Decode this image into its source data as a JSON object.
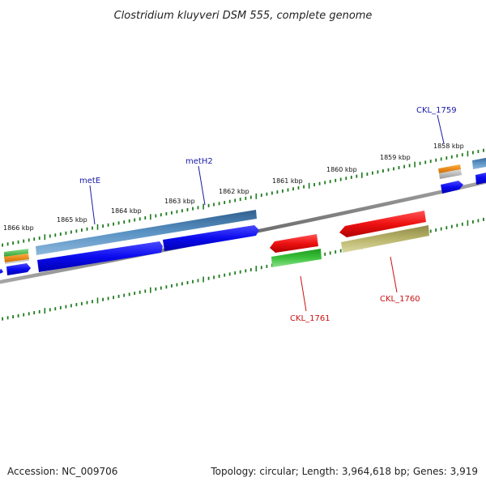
{
  "title": "Clostridium kluyveri DSM 555, complete genome",
  "footer": {
    "accession": "Accession: NC_009706",
    "summary": "Topology: circular; Length: 3,964,618 bp; Genes: 3,919"
  },
  "scale_labels": [
    "1858 kbp",
    "1859 kbp",
    "1860 kbp",
    "1861 kbp",
    "1862 kbp",
    "1863 kbp",
    "1864 kbp",
    "1865 kbp",
    "1866 kbp"
  ],
  "gene_labels": [
    {
      "name": "metE",
      "color": "#1a1aa8"
    },
    {
      "name": "metH2",
      "color": "#1a1aa8"
    },
    {
      "name": "CKL_1759",
      "color": "#1a1aa8"
    },
    {
      "name": "CKL_1761",
      "color": "#cc1111"
    },
    {
      "name": "CKL_1760",
      "color": "#cc1111"
    }
  ],
  "colors": {
    "backbone": "#808080",
    "tick": "#1e7a1e",
    "cds_forward": "#0a0aee",
    "gene_forward": "#4682b4",
    "cds_reverse": "#ee1111",
    "gene_reverse_green": "#33bb33",
    "gene_reverse_olive": "#b8b46a",
    "orange": "#f08a10",
    "silver": "#b8b8b8"
  }
}
